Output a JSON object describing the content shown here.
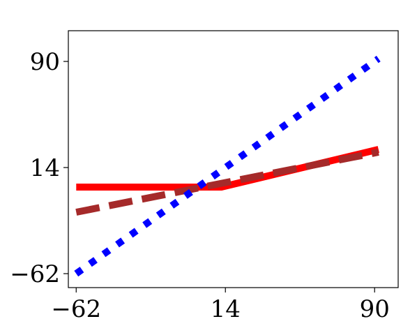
{
  "chart_data": {
    "type": "line",
    "title": "",
    "xlabel": "",
    "ylabel": "",
    "xlim": [
      -66,
      102
    ],
    "ylim": [
      -72,
      112
    ],
    "grid": false,
    "legend": "none",
    "x_ticks": [
      {
        "value": -62,
        "label": "−62"
      },
      {
        "value": 14,
        "label": "14"
      },
      {
        "value": 90,
        "label": "90"
      }
    ],
    "y_ticks": [
      {
        "value": 90,
        "label": "90"
      },
      {
        "value": 14,
        "label": "14"
      },
      {
        "value": -62,
        "label": "−62"
      }
    ],
    "series": [
      {
        "style": "solid",
        "color": "#ff0000",
        "x": [
          -62,
          12,
          92
        ],
        "y": [
          0,
          0,
          27
        ]
      },
      {
        "style": "dashed",
        "color": "#a52a2a",
        "x": [
          -62,
          92
        ],
        "y": [
          -18,
          25
        ]
      },
      {
        "style": "dotted",
        "color": "#0000ff",
        "x": [
          -62,
          92
        ],
        "y": [
          -62,
          92
        ]
      }
    ]
  }
}
